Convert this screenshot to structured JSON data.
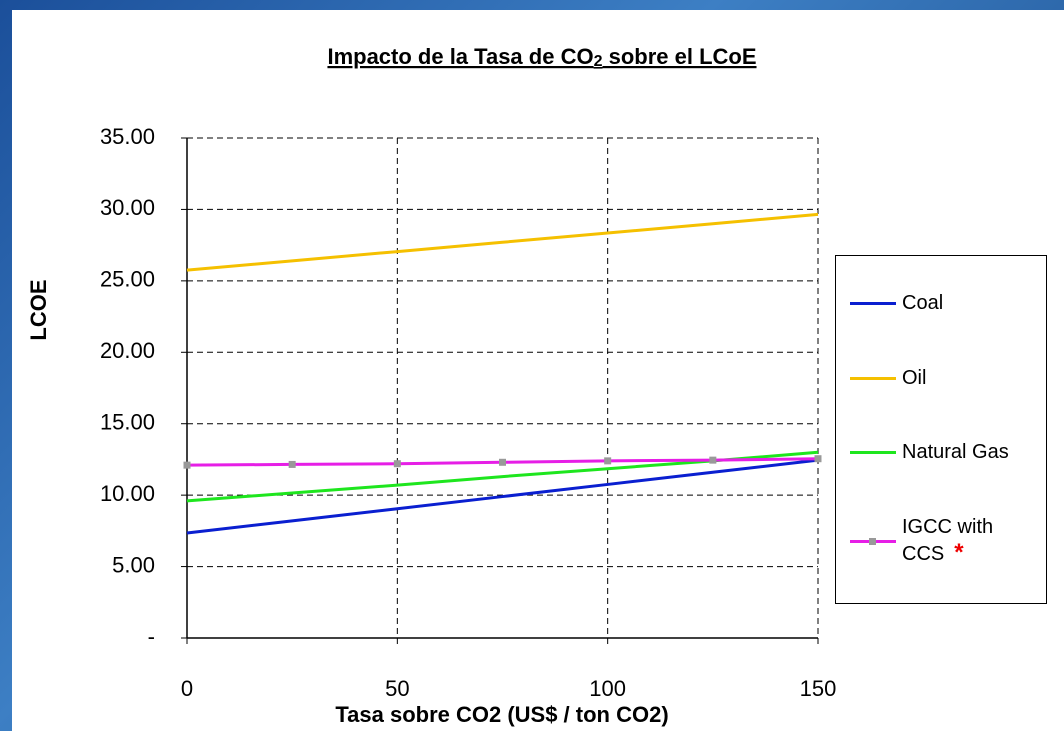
{
  "chart_data": {
    "type": "line",
    "title": [
      "Impacto de la Tasa de CO",
      "2",
      " sobre el LCoE"
    ],
    "x_label": "Tasa sobre CO2 (US$ / ton CO2)",
    "y_label": "LCOE",
    "x": [
      0,
      25,
      50,
      75,
      100,
      125,
      150
    ],
    "series": [
      {
        "name": "Coal",
        "color": "#0a1fd0",
        "marker": false,
        "values": [
          7.35,
          8.2,
          9.05,
          9.9,
          10.75,
          11.6,
          12.45
        ]
      },
      {
        "name": "Oil",
        "color": "#f5c000",
        "marker": false,
        "values": [
          25.75,
          26.4,
          27.05,
          27.7,
          28.35,
          29.0,
          29.65
        ]
      },
      {
        "name": "Natural Gas",
        "color": "#1ee61e",
        "marker": false,
        "values": [
          9.6,
          10.15,
          10.7,
          11.3,
          11.85,
          12.4,
          13.0
        ]
      },
      {
        "name": "IGCC with CCS",
        "color": "#e61ee6",
        "marker": true,
        "values": [
          12.1,
          12.15,
          12.2,
          12.3,
          12.4,
          12.45,
          12.55
        ]
      }
    ],
    "legend_note": "*",
    "xlim": [
      0,
      150
    ],
    "xticks": [
      0,
      50,
      100,
      150
    ],
    "ylim": [
      0,
      35
    ],
    "yticks": [
      {
        "value": 0,
        "label": "-"
      },
      {
        "value": 5,
        "label": "5.00"
      },
      {
        "value": 10,
        "label": "10.00"
      },
      {
        "value": 15,
        "label": "15.00"
      },
      {
        "value": 20,
        "label": "20.00"
      },
      {
        "value": 25,
        "label": "25.00"
      },
      {
        "value": 30,
        "label": "30.00"
      },
      {
        "value": 35,
        "label": "35.00"
      }
    ],
    "grid": true,
    "legend": "right"
  }
}
